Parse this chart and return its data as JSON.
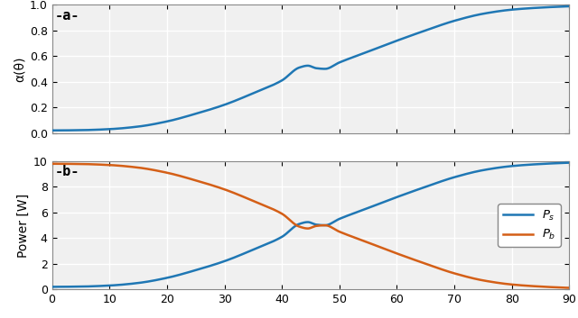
{
  "title_a": "-a-",
  "title_b": "-b-",
  "ylabel_a": "α(θ)",
  "ylabel_b": "Power [W]",
  "xlim": [
    0,
    90
  ],
  "ylim_a": [
    0,
    1
  ],
  "ylim_b": [
    0,
    10
  ],
  "xticks": [
    0,
    10,
    20,
    30,
    40,
    50,
    60,
    70,
    80,
    90
  ],
  "yticks_a": [
    0,
    0.2,
    0.4,
    0.6,
    0.8,
    1.0
  ],
  "yticks_b": [
    0,
    2,
    4,
    6,
    8,
    10
  ],
  "color_blue": "#1f77b4",
  "color_orange": "#d45f17",
  "total_power": 10,
  "figsize": [
    6.4,
    3.53
  ],
  "dpi": 100,
  "bg_color": "#f0f0f0",
  "grid_color": "#ffffff",
  "spine_color": "#aaaaaa",
  "alpha_keypoints_x": [
    0,
    5,
    10,
    15,
    20,
    25,
    30,
    35,
    40,
    43,
    44.5,
    46,
    47.5,
    50,
    55,
    60,
    65,
    70,
    75,
    80,
    85,
    90
  ],
  "alpha_keypoints_y": [
    0.02,
    0.022,
    0.03,
    0.05,
    0.09,
    0.15,
    0.22,
    0.31,
    0.41,
    0.51,
    0.525,
    0.505,
    0.5,
    0.55,
    0.635,
    0.72,
    0.8,
    0.875,
    0.93,
    0.962,
    0.978,
    0.988
  ]
}
